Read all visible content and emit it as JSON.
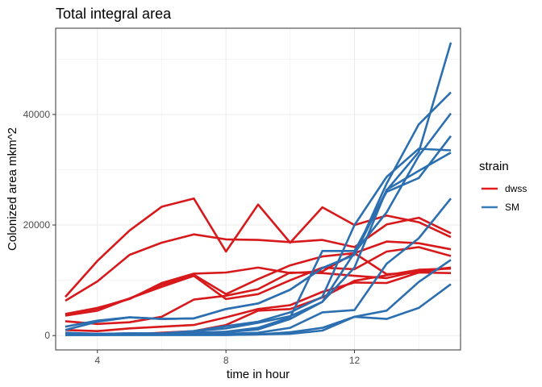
{
  "chart_data": {
    "type": "line",
    "title": "Total integral area",
    "xlabel": "time in hour",
    "ylabel": "Colonized area mkm^2",
    "xlim": [
      2.7,
      15.3
    ],
    "ylim": [
      -2600,
      55600
    ],
    "x_ticks": [
      4,
      8,
      12
    ],
    "y_ticks": [
      0,
      20000,
      40000
    ],
    "x_tick_labels": [
      "4",
      "8",
      "12"
    ],
    "y_tick_labels": [
      "0",
      "20000",
      "40000"
    ],
    "grid": true,
    "legend": {
      "title": "strain",
      "position": "right",
      "entries": [
        {
          "label": "dwss",
          "color": "#e41a1c"
        },
        {
          "label": "SM",
          "color": "#377eb8"
        }
      ]
    },
    "x": [
      3,
      4,
      5,
      6,
      7,
      8,
      9,
      10,
      11,
      12,
      13,
      14,
      15
    ],
    "series": [
      {
        "group": "dwss",
        "color": "#d7191c",
        "values": [
          7000,
          13500,
          19000,
          23300,
          24800,
          15200,
          23700,
          16800,
          23200,
          20000,
          21700,
          20500,
          17800
        ]
      },
      {
        "group": "dwss",
        "color": "#d7191c",
        "values": [
          6300,
          9800,
          14600,
          16800,
          18300,
          17400,
          17300,
          16900,
          17300,
          16000,
          20100,
          21300,
          18500
        ]
      },
      {
        "group": "dwss",
        "color": "#d7191c",
        "values": [
          3900,
          5000,
          6600,
          9500,
          11200,
          11400,
          12300,
          11300,
          11600,
          14900,
          17000,
          16700,
          15600
        ]
      },
      {
        "group": "dwss",
        "color": "#d7191c",
        "values": [
          3600,
          4500,
          6700,
          8800,
          10800,
          6600,
          7500,
          10000,
          12300,
          12000,
          15200,
          16000,
          14400
        ]
      },
      {
        "group": "dwss",
        "color": "#d7191c",
        "values": [
          3800,
          4900,
          6700,
          9200,
          11000,
          7500,
          10200,
          12700,
          14300,
          14900,
          11100,
          11400,
          12300
        ]
      },
      {
        "group": "dwss",
        "color": "#d7191c",
        "values": [
          2600,
          2100,
          2400,
          3400,
          6500,
          7200,
          8400,
          11400,
          11300,
          10800,
          10400,
          11700,
          12300
        ]
      },
      {
        "group": "dwss",
        "color": "#d7191c",
        "values": [
          1000,
          800,
          1300,
          1600,
          1900,
          3300,
          4800,
          5500,
          7900,
          9600,
          9500,
          11400,
          11300
        ]
      },
      {
        "group": "dwss",
        "color": "#d7191c",
        "values": [
          200,
          150,
          200,
          500,
          800,
          1900,
          4500,
          4800,
          6900,
          9900,
          10900,
          11900,
          12100
        ]
      },
      {
        "group": "SM",
        "color": "#2c6fb0",
        "values": [
          1000,
          2500,
          3300,
          3000,
          3100,
          4800,
          5800,
          8300,
          12200,
          14600,
          27500,
          38200,
          44000
        ]
      },
      {
        "group": "SM",
        "color": "#2c6fb0",
        "values": [
          1600,
          2700,
          3300,
          3000,
          3100,
          4800,
          5800,
          8300,
          12200,
          14600,
          26300,
          33200,
          53000
        ]
      },
      {
        "group": "SM",
        "color": "#2c6fb0",
        "values": [
          500,
          300,
          400,
          300,
          800,
          1700,
          2500,
          4200,
          7000,
          20000,
          28700,
          33800,
          33500
        ]
      },
      {
        "group": "SM",
        "color": "#2c6fb0",
        "values": [
          300,
          300,
          400,
          400,
          800,
          1300,
          2300,
          3500,
          6100,
          15000,
          22300,
          32500,
          40200
        ]
      },
      {
        "group": "SM",
        "color": "#2c6fb0",
        "values": [
          200,
          200,
          200,
          300,
          500,
          700,
          1400,
          3300,
          15300,
          15300,
          26000,
          28500,
          36100
        ]
      },
      {
        "group": "SM",
        "color": "#2c6fb0",
        "values": [
          200,
          200,
          200,
          200,
          400,
          600,
          1100,
          3000,
          6100,
          12300,
          26400,
          29800,
          33100
        ]
      },
      {
        "group": "SM",
        "color": "#2c6fb0",
        "values": [
          100,
          100,
          200,
          200,
          300,
          300,
          500,
          1400,
          4200,
          4600,
          13000,
          17600,
          24800
        ]
      },
      {
        "group": "SM",
        "color": "#2c6fb0",
        "values": [
          100,
          100,
          100,
          100,
          100,
          100,
          200,
          600,
          1400,
          3400,
          3000,
          5000,
          9300
        ]
      },
      {
        "group": "SM",
        "color": "#2c6fb0",
        "values": [
          100,
          100,
          100,
          100,
          100,
          100,
          200,
          300,
          900,
          3400,
          4500,
          9700,
          13700
        ]
      }
    ]
  }
}
